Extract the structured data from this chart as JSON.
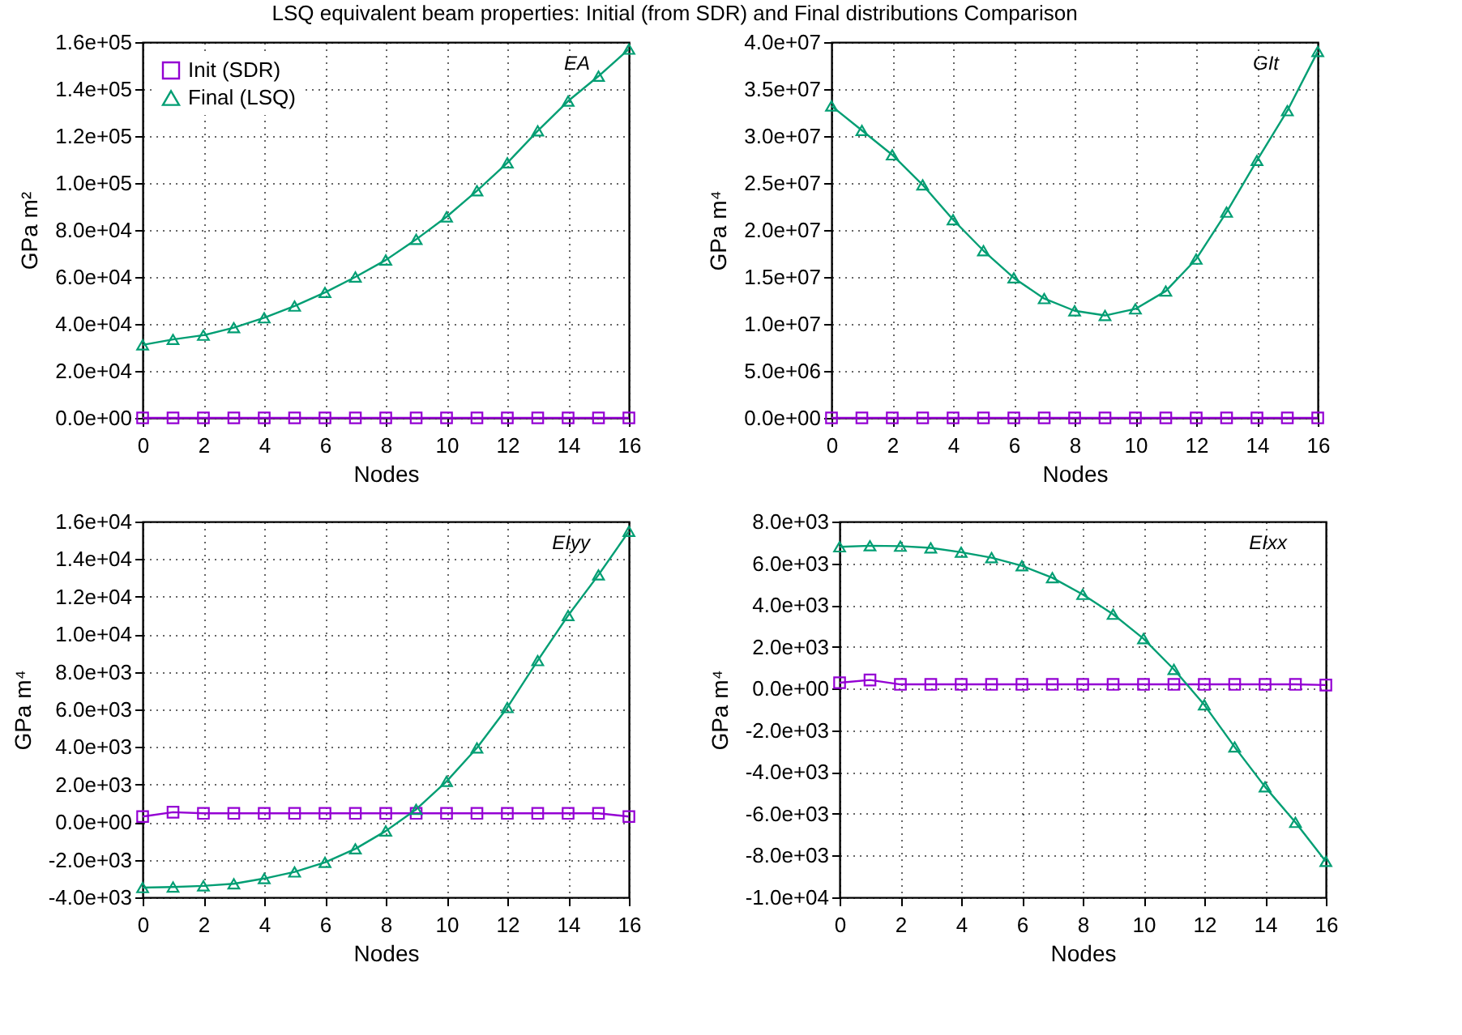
{
  "chart_data": [
    {
      "type": "line",
      "title": "LSQ equivalent beam properties: Initial (from SDR) and Final distributions Comparison",
      "xlabel": "Nodes",
      "ylabel": "GPa m²",
      "annotations": [
        "EA"
      ],
      "grid": true,
      "legend": "top left",
      "x": [
        0,
        1,
        2,
        3,
        4,
        5,
        6,
        7,
        8,
        9,
        10,
        11,
        12,
        13,
        14,
        15,
        16
      ],
      "xlim": [
        0,
        16
      ],
      "xticks": [
        0,
        2,
        4,
        6,
        8,
        10,
        12,
        14,
        16
      ],
      "ylim": [
        0,
        160000
      ],
      "yticks": [
        {
          "value": 0,
          "label": "0.0e+00"
        },
        {
          "value": 20000,
          "label": "2.0e+04"
        },
        {
          "value": 40000,
          "label": "4.0e+04"
        },
        {
          "value": 60000,
          "label": "6.0e+04"
        },
        {
          "value": 80000,
          "label": "8.0e+04"
        },
        {
          "value": 100000,
          "label": "1.0e+05"
        },
        {
          "value": 120000,
          "label": "1.2e+05"
        },
        {
          "value": 140000,
          "label": "1.4e+05"
        },
        {
          "value": 160000,
          "label": "1.6e+05"
        }
      ],
      "series": [
        {
          "name": "Init (SDR)",
          "color": "#9400d3",
          "marker": "square",
          "values": [
            0,
            0,
            0,
            0,
            0,
            0,
            0,
            0,
            0,
            0,
            0,
            0,
            0,
            0,
            0,
            0,
            0
          ]
        },
        {
          "name": "Final (LSQ)",
          "color": "#009e73",
          "marker": "triangle",
          "values": [
            31100,
            33400,
            35200,
            38400,
            42600,
            47600,
            53400,
            60000,
            67200,
            76000,
            85600,
            96700,
            108600,
            122200,
            134900,
            145500,
            157000
          ]
        }
      ]
    },
    {
      "type": "line",
      "xlabel": "Nodes",
      "ylabel": "GPa m⁴",
      "annotations": [
        "GIt"
      ],
      "grid": true,
      "x": [
        0,
        1,
        2,
        3,
        4,
        5,
        6,
        7,
        8,
        9,
        10,
        11,
        12,
        13,
        14,
        15,
        16
      ],
      "xlim": [
        0,
        16
      ],
      "xticks": [
        0,
        2,
        4,
        6,
        8,
        10,
        12,
        14,
        16
      ],
      "ylim": [
        0,
        40000000
      ],
      "yticks": [
        {
          "value": 0,
          "label": "0.0e+00"
        },
        {
          "value": 5000000,
          "label": "5.0e+06"
        },
        {
          "value": 10000000,
          "label": "1.0e+07"
        },
        {
          "value": 15000000,
          "label": "1.5e+07"
        },
        {
          "value": 20000000,
          "label": "2.0e+07"
        },
        {
          "value": 25000000,
          "label": "2.5e+07"
        },
        {
          "value": 30000000,
          "label": "3.0e+07"
        },
        {
          "value": 35000000,
          "label": "3.5e+07"
        },
        {
          "value": 40000000,
          "label": "4.0e+07"
        }
      ],
      "series": [
        {
          "color": "#9400d3",
          "marker": "square",
          "values": [
            0,
            0,
            0,
            0,
            0,
            0,
            0,
            0,
            0,
            0,
            0,
            0,
            0,
            0,
            0,
            0,
            0
          ]
        },
        {
          "color": "#009e73",
          "marker": "triangle",
          "values": [
            33200000,
            30600000,
            28000000,
            24800000,
            21100000,
            17800000,
            14900000,
            12700000,
            11400000,
            10900000,
            11600000,
            13500000,
            16900000,
            21900000,
            27400000,
            32700000,
            39000000
          ]
        }
      ]
    },
    {
      "type": "line",
      "xlabel": "Nodes",
      "ylabel": "GPa m⁴",
      "annotations": [
        "EIyy"
      ],
      "grid": true,
      "x": [
        0,
        1,
        2,
        3,
        4,
        5,
        6,
        7,
        8,
        9,
        10,
        11,
        12,
        13,
        14,
        15,
        16
      ],
      "xlim": [
        0,
        16
      ],
      "xticks": [
        0,
        2,
        4,
        6,
        8,
        10,
        12,
        14,
        16
      ],
      "ylim": [
        -4000,
        16000
      ],
      "yticks": [
        {
          "value": -4000,
          "label": "-4.0e+03"
        },
        {
          "value": -2000,
          "label": "-2.0e+03"
        },
        {
          "value": 0,
          "label": "0.0e+00"
        },
        {
          "value": 2000,
          "label": "2.0e+03"
        },
        {
          "value": 4000,
          "label": "4.0e+03"
        },
        {
          "value": 6000,
          "label": "6.0e+03"
        },
        {
          "value": 8000,
          "label": "8.0e+03"
        },
        {
          "value": 10000,
          "label": "1.0e+04"
        },
        {
          "value": 12000,
          "label": "1.2e+04"
        },
        {
          "value": 14000,
          "label": "1.4e+04"
        },
        {
          "value": 16000,
          "label": "1.6e+04"
        }
      ],
      "series": [
        {
          "color": "#9400d3",
          "marker": "square",
          "values": [
            300,
            530,
            470,
            470,
            470,
            470,
            470,
            470,
            470,
            470,
            470,
            470,
            470,
            470,
            470,
            470,
            300
          ]
        },
        {
          "color": "#009e73",
          "marker": "triangle",
          "values": [
            -3480,
            -3450,
            -3390,
            -3280,
            -3000,
            -2650,
            -2140,
            -1420,
            -470,
            680,
            2170,
            3950,
            6100,
            8600,
            11000,
            13160,
            15480
          ]
        }
      ]
    },
    {
      "type": "line",
      "xlabel": "Nodes",
      "ylabel": "GPa m⁴",
      "annotations": [
        "EIxx"
      ],
      "grid": true,
      "x": [
        0,
        1,
        2,
        3,
        4,
        5,
        6,
        7,
        8,
        9,
        10,
        11,
        12,
        13,
        14,
        15,
        16
      ],
      "xlim": [
        0,
        16
      ],
      "xticks": [
        0,
        2,
        4,
        6,
        8,
        10,
        12,
        14,
        16
      ],
      "ylim": [
        -10000,
        8000
      ],
      "yticks": [
        {
          "value": -10000,
          "label": "-1.0e+04"
        },
        {
          "value": -8000,
          "label": "-8.0e+03"
        },
        {
          "value": -6000,
          "label": "-6.0e+03"
        },
        {
          "value": -4000,
          "label": "-4.0e+03"
        },
        {
          "value": -2000,
          "label": "-2.0e+03"
        },
        {
          "value": 0,
          "label": "0.0e+00"
        },
        {
          "value": 2000,
          "label": "2.0e+03"
        },
        {
          "value": 4000,
          "label": "4.0e+03"
        },
        {
          "value": 6000,
          "label": "6.0e+03"
        },
        {
          "value": 8000,
          "label": "8.0e+03"
        }
      ],
      "series": [
        {
          "color": "#9400d3",
          "marker": "square",
          "values": [
            280,
            410,
            200,
            200,
            200,
            200,
            200,
            200,
            200,
            200,
            200,
            200,
            200,
            200,
            200,
            200,
            170
          ]
        },
        {
          "color": "#009e73",
          "marker": "triangle",
          "values": [
            6790,
            6840,
            6820,
            6740,
            6530,
            6270,
            5880,
            5310,
            4510,
            3560,
            2390,
            920,
            -780,
            -2800,
            -4710,
            -6410,
            -8280
          ]
        }
      ]
    }
  ]
}
